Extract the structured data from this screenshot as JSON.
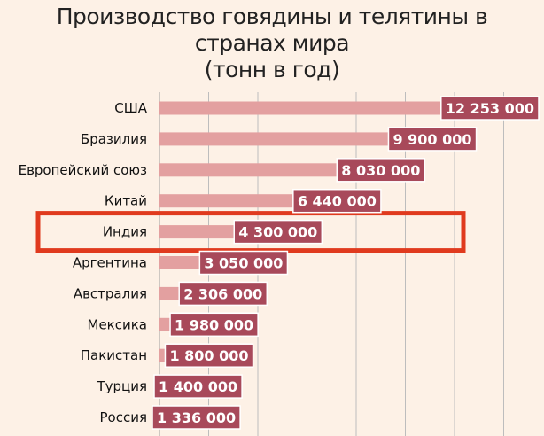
{
  "chart_data": {
    "type": "bar",
    "orientation": "horizontal",
    "title_lines": [
      "Производство говядины и телятины в",
      "странах мира",
      "(тонн в год)"
    ],
    "xlabel": "",
    "ylabel": "",
    "xlim": [
      0,
      13500000
    ],
    "grid": true,
    "categories": [
      "США",
      "Бразилия",
      "Европейский союз",
      "Китай",
      "Индия",
      "Аргентина",
      "Австралия",
      "Мексика",
      "Пакистан",
      "Турция",
      "Россия"
    ],
    "values": [
      12253000,
      9900000,
      8030000,
      6440000,
      4300000,
      3050000,
      2306000,
      1980000,
      1800000,
      1400000,
      1336000
    ],
    "value_labels": [
      "12 253 000",
      "9 900 000",
      "8 030 000",
      "6 440 000",
      "4 300 000",
      "3 050 000",
      "2 306 000",
      "1 980 000",
      "1 800 000",
      "1 400 000",
      "1 336 000"
    ],
    "highlighted_category": "Индия",
    "colors": {
      "bar": "#e3a0a0",
      "label_box": "#a8495a",
      "label_box_border": "#ffffff",
      "highlight": "#e03a1e",
      "grid": "#bdbdbd",
      "background": "#fdf1e6"
    }
  }
}
